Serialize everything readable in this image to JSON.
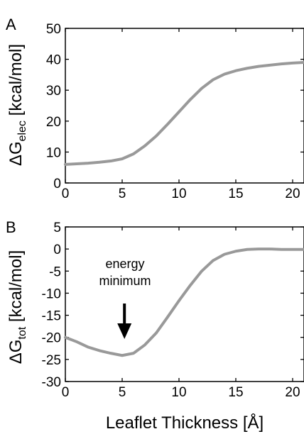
{
  "chart_data": [
    {
      "type": "line",
      "panel_label": "A",
      "ylabel_prefix": "ΔG",
      "ylabel_subscript": "elec",
      "ylabel_unit": " [kcal/mol]",
      "xlabel": "",
      "xlim": [
        0,
        21
      ],
      "ylim": [
        0,
        50
      ],
      "xticks": [
        0,
        5,
        10,
        15,
        20
      ],
      "yticks": [
        0,
        10,
        20,
        30,
        40,
        50
      ],
      "grid": false,
      "line_color": "#999999",
      "series": [
        {
          "x": [
            0,
            1,
            2,
            3,
            4,
            5,
            6,
            7,
            8,
            9,
            10,
            11,
            12,
            13,
            14,
            15,
            16,
            17,
            18,
            19,
            20,
            21
          ],
          "values": [
            6.0,
            6.2,
            6.4,
            6.7,
            7.1,
            7.8,
            9.4,
            12.0,
            15.2,
            19.0,
            23.0,
            27.0,
            30.6,
            33.4,
            35.2,
            36.3,
            37.1,
            37.7,
            38.1,
            38.5,
            38.8,
            39.0
          ]
        }
      ]
    },
    {
      "type": "line",
      "panel_label": "B",
      "ylabel_prefix": "ΔG",
      "ylabel_subscript": "tot",
      "ylabel_unit": " [kcal/mol]",
      "xlabel": "Leaflet Thickness [Å]",
      "xlim": [
        0,
        21
      ],
      "ylim": [
        -30,
        5
      ],
      "xticks": [
        0,
        5,
        10,
        15,
        20
      ],
      "yticks": [
        -30,
        -25,
        -20,
        -15,
        -10,
        -5,
        0,
        5
      ],
      "grid": false,
      "line_color": "#999999",
      "annotation": {
        "lines": [
          "energy",
          "minimum"
        ],
        "x": 5.2
      },
      "series": [
        {
          "x": [
            0,
            1,
            2,
            3,
            4,
            5,
            6,
            7,
            8,
            9,
            10,
            11,
            12,
            13,
            14,
            15,
            16,
            17,
            18,
            19,
            20,
            21
          ],
          "values": [
            -20.0,
            -21.0,
            -22.2,
            -23.0,
            -23.6,
            -24.1,
            -23.6,
            -21.7,
            -19.0,
            -15.4,
            -11.7,
            -8.2,
            -5.0,
            -2.6,
            -1.2,
            -0.5,
            -0.1,
            0.0,
            0.0,
            -0.1,
            -0.1,
            -0.1
          ]
        }
      ]
    }
  ]
}
